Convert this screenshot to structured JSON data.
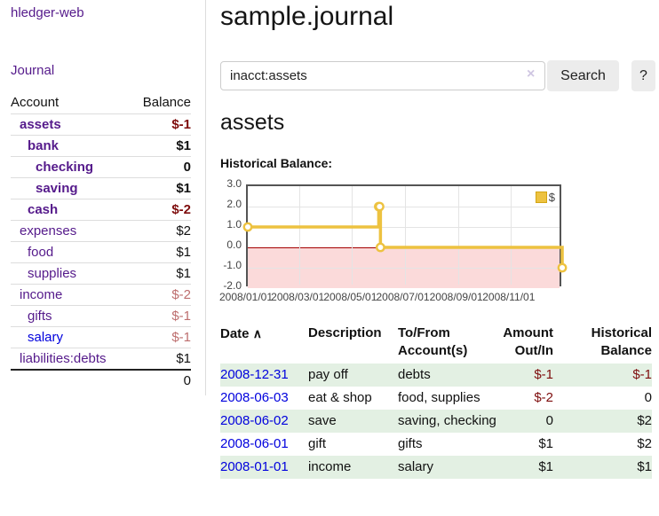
{
  "app": {
    "brand": "hledger-web",
    "nav_journal": "Journal"
  },
  "sidebar": {
    "headers": {
      "account": "Account",
      "balance": "Balance"
    },
    "accounts": [
      {
        "label": "assets",
        "depth": 1,
        "bold": true,
        "link_color": "purple",
        "balance": "$-1",
        "tone": "strong"
      },
      {
        "label": "bank",
        "depth": 2,
        "bold": true,
        "link_color": "purple",
        "balance": "$1",
        "tone": "normal"
      },
      {
        "label": "checking",
        "depth": 3,
        "bold": true,
        "link_color": "purple",
        "balance": "0",
        "tone": "normal"
      },
      {
        "label": "saving",
        "depth": 3,
        "bold": true,
        "link_color": "purple",
        "balance": "$1",
        "tone": "normal"
      },
      {
        "label": "cash",
        "depth": 2,
        "bold": true,
        "link_color": "purple",
        "balance": "$-2",
        "tone": "strong"
      },
      {
        "label": "expenses",
        "depth": 1,
        "bold": false,
        "link_color": "purple",
        "balance": "$2",
        "tone": "normal"
      },
      {
        "label": "food",
        "depth": 2,
        "bold": false,
        "link_color": "purple",
        "balance": "$1",
        "tone": "normal"
      },
      {
        "label": "supplies",
        "depth": 2,
        "bold": false,
        "link_color": "purple",
        "balance": "$1",
        "tone": "normal"
      },
      {
        "label": "income",
        "depth": 1,
        "bold": false,
        "link_color": "purple",
        "balance": "$-2",
        "tone": "soft"
      },
      {
        "label": "gifts",
        "depth": 2,
        "bold": false,
        "link_color": "purple",
        "balance": "$-1",
        "tone": "soft"
      },
      {
        "label": "salary",
        "depth": 2,
        "bold": false,
        "link_color": "blue",
        "balance": "$-1",
        "tone": "soft"
      },
      {
        "label": "liabilities:debts",
        "depth": 1,
        "bold": false,
        "link_color": "purple",
        "balance": "$1",
        "tone": "normal"
      }
    ],
    "total": "0"
  },
  "main": {
    "title": "sample.journal",
    "search": {
      "value": "inacct:assets",
      "clear_icon": "×",
      "search_button": "Search",
      "help_button": "?"
    },
    "account_heading": "assets",
    "chart_heading": "Historical Balance:"
  },
  "chart_data": {
    "type": "line",
    "style": "step-after",
    "title": "Historical Balance:",
    "series": [
      {
        "name": "$",
        "color": "#edc240",
        "points": [
          [
            "2008-01-01",
            1
          ],
          [
            "2008-06-01",
            2
          ],
          [
            "2008-06-02",
            2
          ],
          [
            "2008-06-03",
            0
          ],
          [
            "2008-12-31",
            -1
          ]
        ]
      }
    ],
    "x_ticks": [
      "2008/01/01",
      "2008/03/01",
      "2008/05/01",
      "2008/07/01",
      "2008/09/01",
      "2008/11/01"
    ],
    "y_ticks": [
      3.0,
      2.0,
      1.0,
      0.0,
      -1.0,
      -2.0
    ],
    "ylim": [
      -2,
      3
    ],
    "xlim": [
      "2008-01-01",
      "2009-01-01"
    ],
    "grid": true,
    "legend_position": "top-right",
    "negative_region_color": "#fbdada",
    "zero_line_color": "#a40000"
  },
  "register": {
    "headers": [
      "Date",
      "Description",
      "To/From Account(s)",
      "Amount Out/In",
      "Historical Balance"
    ],
    "sort_indicator": "∧",
    "rows": [
      {
        "date": "2008-12-31",
        "description": "pay off",
        "accounts": "debts",
        "amount": "$-1",
        "amount_negative": true,
        "balance": "$-1",
        "balance_negative": true
      },
      {
        "date": "2008-06-03",
        "description": "eat & shop",
        "accounts": "food, supplies",
        "amount": "$-2",
        "amount_negative": true,
        "balance": "0",
        "balance_negative": false
      },
      {
        "date": "2008-06-02",
        "description": "save",
        "accounts": "saving, checking",
        "amount": "0",
        "amount_negative": false,
        "balance": "$2",
        "balance_negative": false
      },
      {
        "date": "2008-06-01",
        "description": "gift",
        "accounts": "gifts",
        "amount": "$1",
        "amount_negative": false,
        "balance": "$2",
        "balance_negative": false
      },
      {
        "date": "2008-01-01",
        "description": "income",
        "accounts": "salary",
        "amount": "$1",
        "amount_negative": false,
        "balance": "$1",
        "balance_negative": false
      }
    ]
  }
}
